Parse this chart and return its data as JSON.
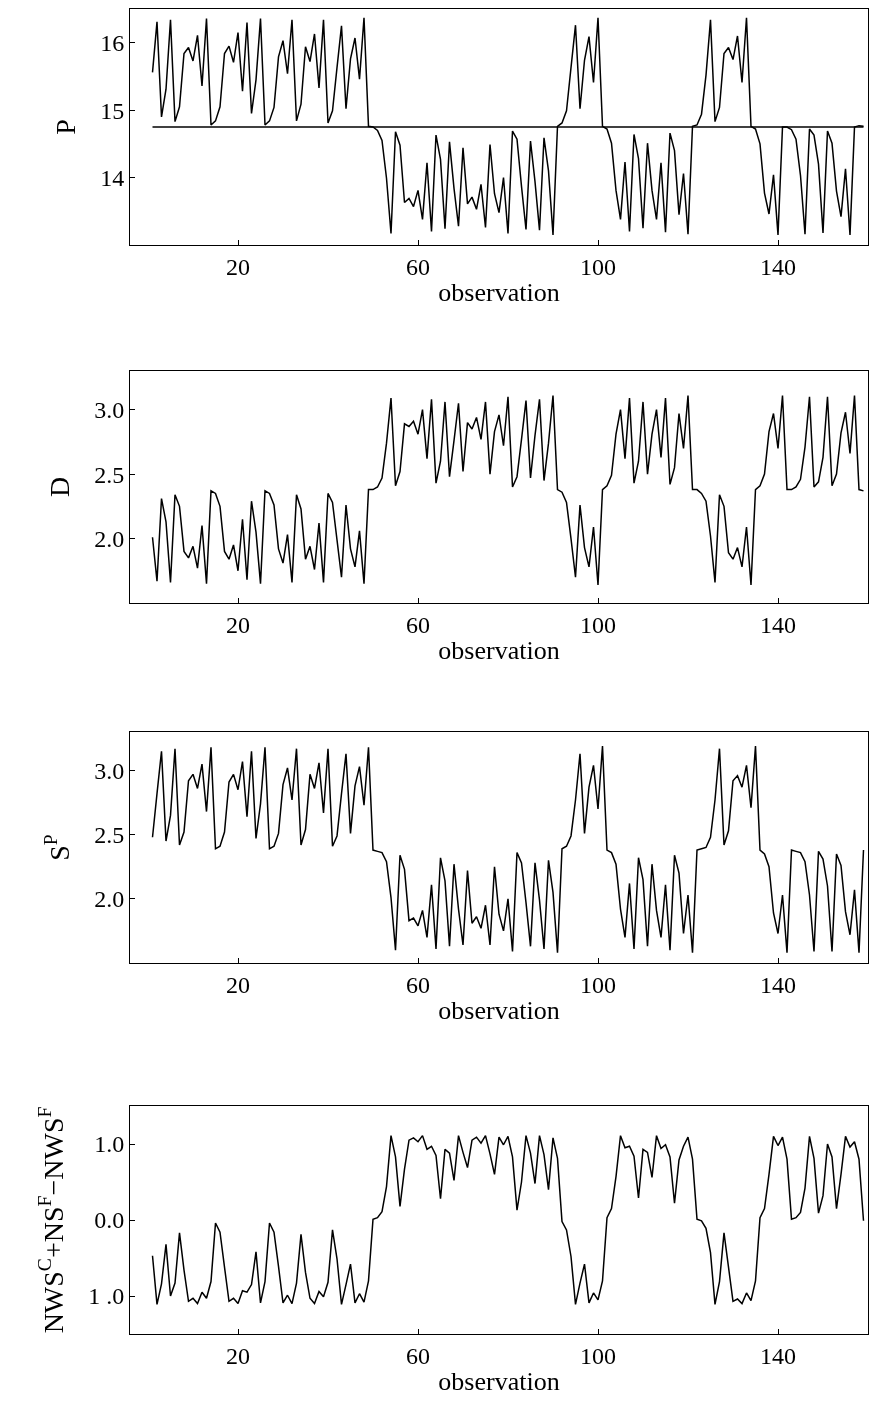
{
  "chart_data": [
    {
      "type": "line",
      "xlabel": "observation",
      "ylabel": "P",
      "xlim": [
        -4,
        160
      ],
      "xticks": [
        20,
        60,
        100,
        140
      ],
      "ylim": [
        13.0,
        16.5
      ],
      "yticks": [
        14,
        15,
        16
      ],
      "marker": "none",
      "line_style": "solid",
      "ref_lines": [
        {
          "axis": "y",
          "value": 14.75,
          "color": "#000000"
        }
      ],
      "series": [
        {
          "color": "#000000",
          "x": [
            1,
            2,
            3,
            4,
            5,
            6,
            7,
            8,
            9,
            10,
            11,
            12,
            13,
            14,
            15,
            16,
            17,
            18,
            19,
            20,
            21,
            22,
            23,
            24,
            25,
            26,
            27,
            28,
            29,
            30,
            31,
            32,
            33,
            34,
            35,
            36,
            37,
            38,
            39,
            40,
            41,
            42,
            43,
            44,
            45,
            46,
            47,
            48,
            49,
            50,
            51,
            52,
            53,
            54,
            55,
            56,
            57,
            58,
            59,
            60,
            61,
            62,
            63,
            64,
            65,
            66,
            67,
            68,
            69,
            70,
            71,
            72,
            73,
            74,
            75,
            76,
            77,
            78,
            79,
            80,
            81,
            82,
            83,
            84,
            85,
            86,
            87,
            88,
            89,
            90,
            91,
            92,
            93,
            94,
            95,
            96,
            97,
            98,
            99,
            100,
            101,
            102,
            103,
            104,
            105,
            106,
            107,
            108,
            109,
            110,
            111,
            112,
            113,
            114,
            115,
            116,
            117,
            118,
            119,
            120,
            121,
            122,
            123,
            124,
            125,
            126,
            127,
            128,
            129,
            130,
            131,
            132,
            133,
            134,
            135,
            136,
            137,
            138,
            139,
            140,
            141,
            142,
            143,
            144,
            145,
            146,
            147,
            148,
            149,
            150,
            151,
            152,
            153,
            154,
            155,
            156,
            157,
            158,
            159
          ],
          "values": [
            15.56,
            16.31,
            14.9,
            15.31,
            16.34,
            14.83,
            15.05,
            15.84,
            15.93,
            15.73,
            16.11,
            15.36,
            16.36,
            14.78,
            14.84,
            15.05,
            15.84,
            15.95,
            15.71,
            16.15,
            15.28,
            16.3,
            14.95,
            15.45,
            16.36,
            14.78,
            14.84,
            15.04,
            15.79,
            16.03,
            15.54,
            16.34,
            14.84,
            15.09,
            15.94,
            15.72,
            16.13,
            15.33,
            16.34,
            14.81,
            14.99,
            15.63,
            16.25,
            15.02,
            15.76,
            16.07,
            15.46,
            16.37,
            14.76,
            14.75,
            14.7,
            14.55,
            13.99,
            13.17,
            14.68,
            14.48,
            13.63,
            13.69,
            13.57,
            13.81,
            13.38,
            14.22,
            13.2,
            14.63,
            14.27,
            13.24,
            14.53,
            13.84,
            13.28,
            14.44,
            13.61,
            13.71,
            13.53,
            13.9,
            13.26,
            14.49,
            13.76,
            13.48,
            14.0,
            13.17,
            14.69,
            14.57,
            13.87,
            13.23,
            14.54,
            13.94,
            13.22,
            14.59,
            14.1,
            13.15,
            14.76,
            14.81,
            14.99,
            15.63,
            16.26,
            15.02,
            15.74,
            16.09,
            15.41,
            16.37,
            14.76,
            14.72,
            14.51,
            13.81,
            13.38,
            14.23,
            13.2,
            14.64,
            14.28,
            13.25,
            14.51,
            13.81,
            13.38,
            14.22,
            13.19,
            14.66,
            14.4,
            13.45,
            14.06,
            13.16,
            14.76,
            14.78,
            14.94,
            15.52,
            16.34,
            14.83,
            15.04,
            15.84,
            15.93,
            15.75,
            16.1,
            15.41,
            16.37,
            14.76,
            14.72,
            14.5,
            13.77,
            13.46,
            14.04,
            13.15,
            14.75,
            14.75,
            14.71,
            14.57,
            14.03,
            13.16,
            14.72,
            14.63,
            14.2,
            13.18,
            14.69,
            14.51,
            13.8,
            13.42,
            14.13,
            13.15,
            14.75,
            14.77,
            14.76
          ]
        }
      ]
    },
    {
      "type": "line",
      "xlabel": "observation",
      "ylabel": "D",
      "xlim": [
        -4,
        160
      ],
      "xticks": [
        20,
        60,
        100,
        140
      ],
      "ylim": [
        1.5,
        3.3
      ],
      "yticks": [
        {
          "value": 2.0,
          "label": "2.0"
        },
        {
          "value": 2.5,
          "label": "2.5"
        },
        {
          "value": 3.0,
          "label": "3.0"
        }
      ],
      "marker": "none",
      "line_style": "solid",
      "series": [
        {
          "color": "#000000",
          "x": [
            1,
            2,
            3,
            4,
            5,
            6,
            7,
            8,
            9,
            10,
            11,
            12,
            13,
            14,
            15,
            16,
            17,
            18,
            19,
            20,
            21,
            22,
            23,
            24,
            25,
            26,
            27,
            28,
            29,
            30,
            31,
            32,
            33,
            34,
            35,
            36,
            37,
            38,
            39,
            40,
            41,
            42,
            43,
            44,
            45,
            46,
            47,
            48,
            49,
            50,
            51,
            52,
            53,
            54,
            55,
            56,
            57,
            58,
            59,
            60,
            61,
            62,
            63,
            64,
            65,
            66,
            67,
            68,
            69,
            70,
            71,
            72,
            73,
            74,
            75,
            76,
            77,
            78,
            79,
            80,
            81,
            82,
            83,
            84,
            85,
            86,
            87,
            88,
            89,
            90,
            91,
            92,
            93,
            94,
            95,
            96,
            97,
            98,
            99,
            100,
            101,
            102,
            103,
            104,
            105,
            106,
            107,
            108,
            109,
            110,
            111,
            112,
            113,
            114,
            115,
            116,
            117,
            118,
            119,
            120,
            121,
            122,
            123,
            124,
            125,
            126,
            127,
            128,
            129,
            130,
            131,
            132,
            133,
            134,
            135,
            136,
            137,
            138,
            139,
            140,
            141,
            142,
            143,
            144,
            145,
            146,
            147,
            148,
            149,
            150,
            151,
            152,
            153,
            154,
            155,
            156,
            157,
            158,
            159
          ],
          "values": [
            2.01,
            1.67,
            2.31,
            2.13,
            1.66,
            2.34,
            2.25,
            1.9,
            1.85,
            1.94,
            1.77,
            2.1,
            1.65,
            2.37,
            2.35,
            2.25,
            1.9,
            1.84,
            1.95,
            1.75,
            2.15,
            1.68,
            2.29,
            2.05,
            1.65,
            2.37,
            2.35,
            2.26,
            1.92,
            1.81,
            2.03,
            1.66,
            2.34,
            2.23,
            1.84,
            1.94,
            1.76,
            2.12,
            1.66,
            2.35,
            2.28,
            1.99,
            1.7,
            2.26,
            1.92,
            1.78,
            2.06,
            1.65,
            2.38,
            2.38,
            2.4,
            2.47,
            2.74,
            3.09,
            2.41,
            2.52,
            2.89,
            2.87,
            2.91,
            2.81,
            3.0,
            2.62,
            3.08,
            2.43,
            2.6,
            3.06,
            2.48,
            2.76,
            3.05,
            2.52,
            2.9,
            2.85,
            2.94,
            2.77,
            3.06,
            2.5,
            2.83,
            2.96,
            2.72,
            3.1,
            2.4,
            2.48,
            2.77,
            3.07,
            2.47,
            2.8,
            3.08,
            2.45,
            2.74,
            3.11,
            2.38,
            2.36,
            2.28,
            2.0,
            1.7,
            2.26,
            1.93,
            1.78,
            2.09,
            1.64,
            2.38,
            2.41,
            2.49,
            2.81,
            3.0,
            2.62,
            3.09,
            2.43,
            2.6,
            3.06,
            2.5,
            2.81,
            3.0,
            2.63,
            3.09,
            2.42,
            2.55,
            2.97,
            2.7,
            3.11,
            2.38,
            2.38,
            2.35,
            2.29,
            2.02,
            1.66,
            2.34,
            2.25,
            1.89,
            1.84,
            1.93,
            1.78,
            2.09,
            1.64,
            2.38,
            2.41,
            2.5,
            2.83,
            2.97,
            2.7,
            3.11,
            2.38,
            2.38,
            2.4,
            2.46,
            2.71,
            3.1,
            2.4,
            2.44,
            2.63,
            3.1,
            2.41,
            2.5,
            2.82,
            2.98,
            2.66,
            3.11,
            2.38,
            2.37
          ]
        }
      ]
    },
    {
      "type": "line",
      "xlabel": "observation",
      "ylabel": "S$^{P}$",
      "xlim": [
        -4,
        160
      ],
      "xticks": [
        20,
        60,
        100,
        140
      ],
      "ylim": [
        1.5,
        3.3
      ],
      "yticks": [
        {
          "value": 2.0,
          "label": "2.0"
        },
        {
          "value": 2.5,
          "label": "2.5"
        },
        {
          "value": 3.0,
          "label": "3.0"
        }
      ],
      "marker": "none",
      "line_style": "solid",
      "series": [
        {
          "color": "#000000",
          "x": [
            1,
            2,
            3,
            4,
            5,
            6,
            7,
            8,
            9,
            10,
            11,
            12,
            13,
            14,
            15,
            16,
            17,
            18,
            19,
            20,
            21,
            22,
            23,
            24,
            25,
            26,
            27,
            28,
            29,
            30,
            31,
            32,
            33,
            34,
            35,
            36,
            37,
            38,
            39,
            40,
            41,
            42,
            43,
            44,
            45,
            46,
            47,
            48,
            49,
            50,
            51,
            52,
            53,
            54,
            55,
            56,
            57,
            58,
            59,
            60,
            61,
            62,
            63,
            64,
            65,
            66,
            67,
            68,
            69,
            70,
            71,
            72,
            73,
            74,
            75,
            76,
            77,
            78,
            79,
            80,
            81,
            82,
            83,
            84,
            85,
            86,
            87,
            88,
            89,
            90,
            91,
            92,
            93,
            94,
            95,
            96,
            97,
            98,
            99,
            100,
            101,
            102,
            103,
            104,
            105,
            106,
            107,
            108,
            109,
            110,
            111,
            112,
            113,
            114,
            115,
            116,
            117,
            118,
            119,
            120,
            121,
            122,
            123,
            124,
            125,
            126,
            127,
            128,
            129,
            130,
            131,
            132,
            133,
            134,
            135,
            136,
            137,
            138,
            139,
            140,
            141,
            142,
            143,
            144,
            145,
            146,
            147,
            148,
            149,
            150,
            151,
            152,
            153,
            154,
            155,
            156,
            157,
            158,
            159
          ],
          "values": [
            2.48,
            2.82,
            3.15,
            2.45,
            2.65,
            3.17,
            2.42,
            2.52,
            2.92,
            2.97,
            2.86,
            3.05,
            2.68,
            3.18,
            2.39,
            2.41,
            2.52,
            2.91,
            2.97,
            2.85,
            3.07,
            2.64,
            3.15,
            2.47,
            2.74,
            3.18,
            2.39,
            2.41,
            2.51,
            2.89,
            3.02,
            2.77,
            3.17,
            2.42,
            2.54,
            2.97,
            2.86,
            3.06,
            2.67,
            3.17,
            2.41,
            2.49,
            2.82,
            3.13,
            2.51,
            2.88,
            3.03,
            2.73,
            3.18,
            2.38,
            2.37,
            2.36,
            2.29,
            2.01,
            1.6,
            2.34,
            2.23,
            1.83,
            1.85,
            1.79,
            1.91,
            1.7,
            2.11,
            1.61,
            2.32,
            2.14,
            1.63,
            2.27,
            1.92,
            1.64,
            2.22,
            1.81,
            1.86,
            1.77,
            1.95,
            1.64,
            2.25,
            1.88,
            1.75,
            2.0,
            1.59,
            2.36,
            2.28,
            1.97,
            1.63,
            2.28,
            1.99,
            1.61,
            2.3,
            2.05,
            1.58,
            2.39,
            2.41,
            2.49,
            2.77,
            3.13,
            2.51,
            2.87,
            3.04,
            2.7,
            3.19,
            2.38,
            2.36,
            2.27,
            1.92,
            1.7,
            2.12,
            1.61,
            2.32,
            2.15,
            1.63,
            2.27,
            1.91,
            1.7,
            2.11,
            1.6,
            2.34,
            2.2,
            1.73,
            2.03,
            1.58,
            2.38,
            2.39,
            2.4,
            2.48,
            2.77,
            3.17,
            2.42,
            2.53,
            2.92,
            2.96,
            2.87,
            3.04,
            2.71,
            3.19,
            2.38,
            2.35,
            2.25,
            1.89,
            1.73,
            2.03,
            1.58,
            2.38,
            2.37,
            2.36,
            2.29,
            2.03,
            1.59,
            2.37,
            2.31,
            2.1,
            1.59,
            2.35,
            2.26,
            1.9,
            1.72,
            2.07,
            1.58,
            2.38
          ]
        }
      ]
    },
    {
      "type": "line",
      "xlabel": "observation",
      "ylabel": "NWS$^{C}$+NS$^{F}$−NWS$^{F}$",
      "xlim": [
        -4,
        160
      ],
      "xticks": [
        20,
        60,
        100,
        140
      ],
      "ylim": [
        -1.5,
        1.5
      ],
      "yticks": [
        {
          "value": -1.0,
          "label": "1 .0"
        },
        {
          "value": 0.0,
          "label": "0.0"
        },
        {
          "value": 1.0,
          "label": "1.0"
        }
      ],
      "marker": "none",
      "line_style": "solid",
      "series": [
        {
          "color": "#000000",
          "x": [
            1,
            2,
            3,
            4,
            5,
            6,
            7,
            8,
            9,
            10,
            11,
            12,
            13,
            14,
            15,
            16,
            17,
            18,
            19,
            20,
            21,
            22,
            23,
            24,
            25,
            26,
            27,
            28,
            29,
            30,
            31,
            32,
            33,
            34,
            35,
            36,
            37,
            38,
            39,
            40,
            41,
            42,
            43,
            44,
            45,
            46,
            47,
            48,
            49,
            50,
            51,
            52,
            53,
            54,
            55,
            56,
            57,
            58,
            59,
            60,
            61,
            62,
            63,
            64,
            65,
            66,
            67,
            68,
            69,
            70,
            71,
            72,
            73,
            74,
            75,
            76,
            77,
            78,
            79,
            80,
            81,
            82,
            83,
            84,
            85,
            86,
            87,
            88,
            89,
            90,
            91,
            92,
            93,
            94,
            95,
            96,
            97,
            98,
            99,
            100,
            101,
            102,
            103,
            104,
            105,
            106,
            107,
            108,
            109,
            110,
            111,
            112,
            113,
            114,
            115,
            116,
            117,
            118,
            119,
            120,
            121,
            122,
            123,
            124,
            125,
            126,
            127,
            128,
            129,
            130,
            131,
            132,
            133,
            134,
            135,
            136,
            137,
            138,
            139,
            140,
            141,
            142,
            143,
            144,
            145,
            146,
            147,
            148,
            149,
            150,
            151,
            152,
            153,
            154,
            155,
            156,
            157,
            158,
            159
          ],
          "values": [
            -0.47,
            -1.11,
            -0.84,
            -0.32,
            -1.0,
            -0.83,
            -0.17,
            -0.66,
            -1.07,
            -1.03,
            -1.1,
            -0.95,
            -1.03,
            -0.81,
            -0.04,
            -0.16,
            -0.62,
            -1.07,
            -1.03,
            -1.1,
            -0.93,
            -0.95,
            -0.85,
            -0.42,
            -1.09,
            -0.81,
            -0.04,
            -0.16,
            -0.61,
            -1.09,
            -0.99,
            -1.1,
            -0.83,
            -0.19,
            -0.69,
            -1.03,
            -1.1,
            -0.94,
            -1.01,
            -0.82,
            -0.13,
            -0.51,
            -1.11,
            -0.85,
            -0.58,
            -1.09,
            -0.97,
            -1.08,
            -0.8,
            0.01,
            0.03,
            0.11,
            0.44,
            1.11,
            0.83,
            0.18,
            0.67,
            1.05,
            1.08,
            1.03,
            1.11,
            0.93,
            0.97,
            0.85,
            0.28,
            0.93,
            0.88,
            0.52,
            1.11,
            0.89,
            0.69,
            1.05,
            1.09,
            1.01,
            1.11,
            0.87,
            0.6,
            1.09,
            0.99,
            1.1,
            0.83,
            0.13,
            0.5,
            1.11,
            0.88,
            0.48,
            1.11,
            0.86,
            0.4,
            1.08,
            0.81,
            -0.02,
            -0.13,
            -0.48,
            -1.11,
            -0.83,
            -0.58,
            -1.09,
            -0.96,
            -1.05,
            -0.8,
            0.03,
            0.15,
            0.57,
            1.11,
            0.95,
            0.97,
            0.84,
            0.29,
            0.93,
            0.89,
            0.56,
            1.11,
            0.94,
            0.99,
            0.83,
            0.22,
            0.79,
            0.97,
            1.09,
            0.8,
            0.01,
            -0.01,
            -0.11,
            -0.43,
            -1.11,
            -0.81,
            -0.17,
            -0.62,
            -1.07,
            -1.04,
            -1.1,
            -0.96,
            -1.06,
            -0.8,
            0.03,
            0.15,
            0.6,
            1.1,
            0.98,
            1.09,
            0.8,
            0.01,
            0.03,
            0.1,
            0.42,
            1.1,
            0.81,
            0.09,
            0.32,
            1.0,
            0.83,
            0.15,
            0.6,
            1.1,
            0.96,
            1.03,
            0.8,
            -0.01
          ]
        }
      ]
    }
  ]
}
